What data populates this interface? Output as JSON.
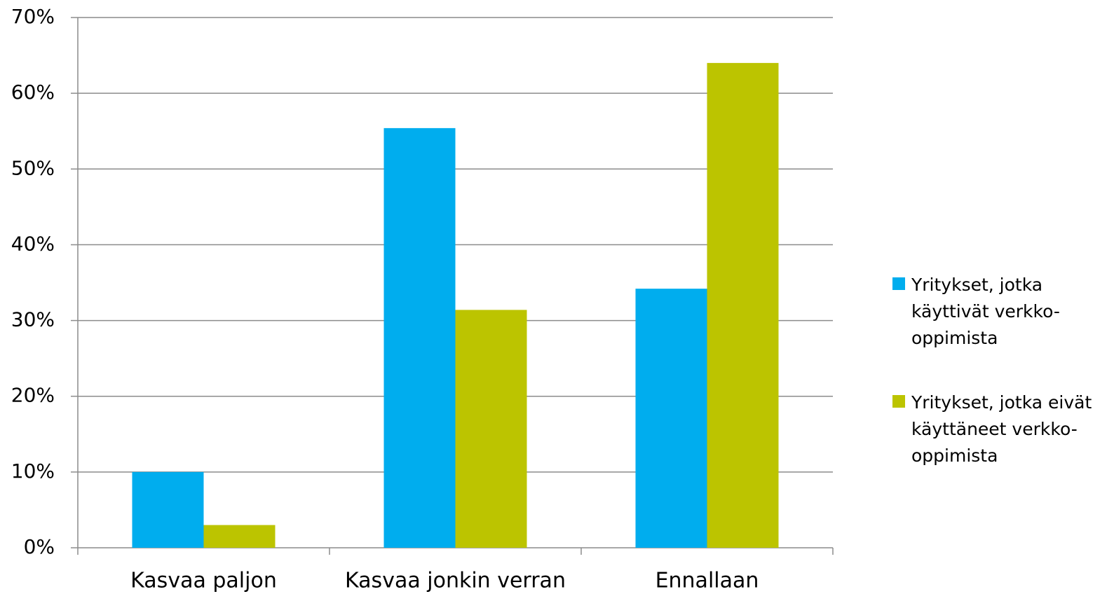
{
  "chart_data": {
    "type": "bar",
    "categories": [
      "Kasvaa paljon",
      "Kasvaa jonkin verran",
      "Ennallaan"
    ],
    "series": [
      {
        "name": "Yritykset, jotka käyttivät verkko-oppimista",
        "color": "#00adee",
        "values": [
          10,
          55.4,
          34.2
        ]
      },
      {
        "name": "Yritykset, jotka eivät käyttäneet verkko-oppimista",
        "color": "#bcc400",
        "values": [
          3,
          31.4,
          64
        ]
      }
    ],
    "ylim": [
      0,
      70
    ],
    "yticks": [
      {
        "value": 0,
        "label": "0%"
      },
      {
        "value": 10,
        "label": "10%"
      },
      {
        "value": 20,
        "label": "20%"
      },
      {
        "value": 30,
        "label": "30%"
      },
      {
        "value": 40,
        "label": "40%"
      },
      {
        "value": 50,
        "label": "50%"
      },
      {
        "value": 60,
        "label": "60%"
      },
      {
        "value": 70,
        "label": "70%"
      }
    ],
    "grid": true,
    "legend": "right"
  }
}
